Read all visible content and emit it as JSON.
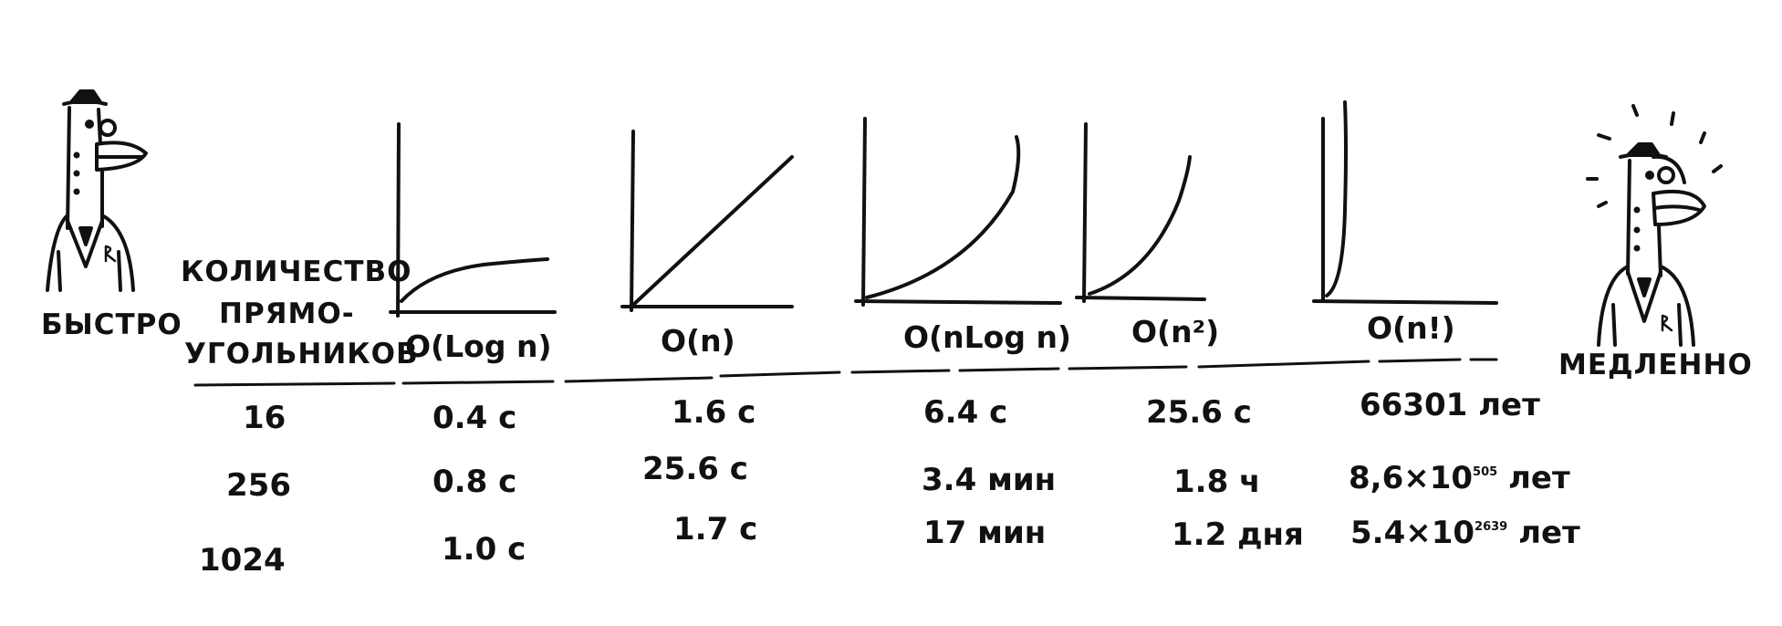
{
  "labels": {
    "fast": "БЫСТРО",
    "slow": "МЕДЛЕННО",
    "count_line1": "КОЛИЧЕСТВО",
    "count_line2": "ПРЯМО-",
    "count_line3": "УГОЛЬНИКОВ"
  },
  "complexities": [
    "O(Log n)",
    "O(n)",
    "O(nLog n)",
    "O(n²)",
    "O(n!)"
  ],
  "rows": [
    {
      "count": "16",
      "times": [
        "0.4 с",
        "1.6 с",
        "6.4 с",
        "25.6 с",
        "66301 лет"
      ]
    },
    {
      "count": "256",
      "times": [
        "0.8 с",
        "25.6 с",
        "3.4 мин",
        "1.8 ч",
        "8,6×10"
      ],
      "factorial_exponent": "505",
      "factorial_unit": "лет"
    },
    {
      "count": "1024",
      "times": [
        "1.0 с",
        "1.7 с",
        "17 мин",
        "1.2 дня",
        "5.4×10"
      ],
      "factorial_exponent": "2639",
      "factorial_unit": "лет"
    }
  ]
}
